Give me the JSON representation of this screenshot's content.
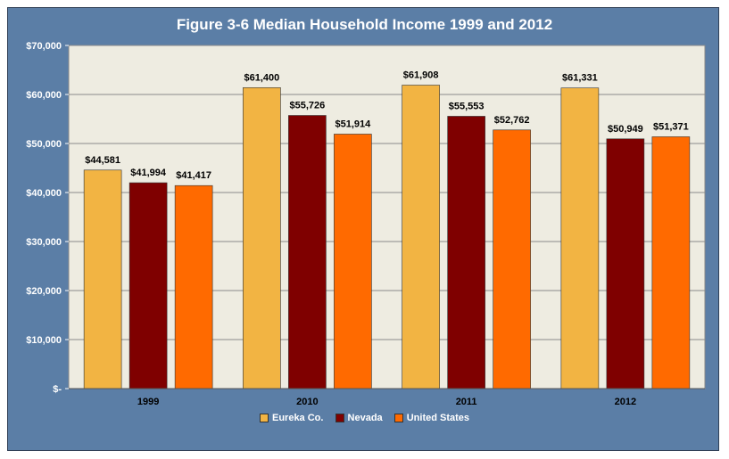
{
  "chart_data": {
    "type": "bar",
    "title": "Figure 3-6 Median Household Income 1999 and 2012",
    "categories": [
      "1999",
      "2010",
      "2011",
      "2012"
    ],
    "series": [
      {
        "name": "Eureka Co.",
        "color": "#f2b443",
        "values": [
          44581,
          61400,
          61908,
          61331
        ],
        "labels": [
          "$44,581",
          "$61,400",
          "$61,908",
          "$61,331"
        ]
      },
      {
        "name": "Nevada",
        "color": "#7f0000",
        "values": [
          41994,
          55726,
          55553,
          50949
        ],
        "labels": [
          "$41,994",
          "$55,726",
          "$55,553",
          "$50,949"
        ]
      },
      {
        "name": "United States",
        "color": "#ff6a00",
        "values": [
          41417,
          51914,
          52762,
          51371
        ],
        "labels": [
          "$41,417",
          "$51,914",
          "$52,762",
          "$51,371"
        ]
      }
    ],
    "ylim": [
      0,
      70000
    ],
    "yticks": [
      0,
      10000,
      20000,
      30000,
      40000,
      50000,
      60000,
      70000
    ],
    "ytick_labels": [
      "$-",
      "$10,000",
      "$20,000",
      "$30,000",
      "$40,000",
      "$50,000",
      "$60,000",
      "$70,000"
    ],
    "grid": true,
    "legend_position": "bottom",
    "plot_background": "#eeece1",
    "frame_background": "#5b7ea6"
  }
}
